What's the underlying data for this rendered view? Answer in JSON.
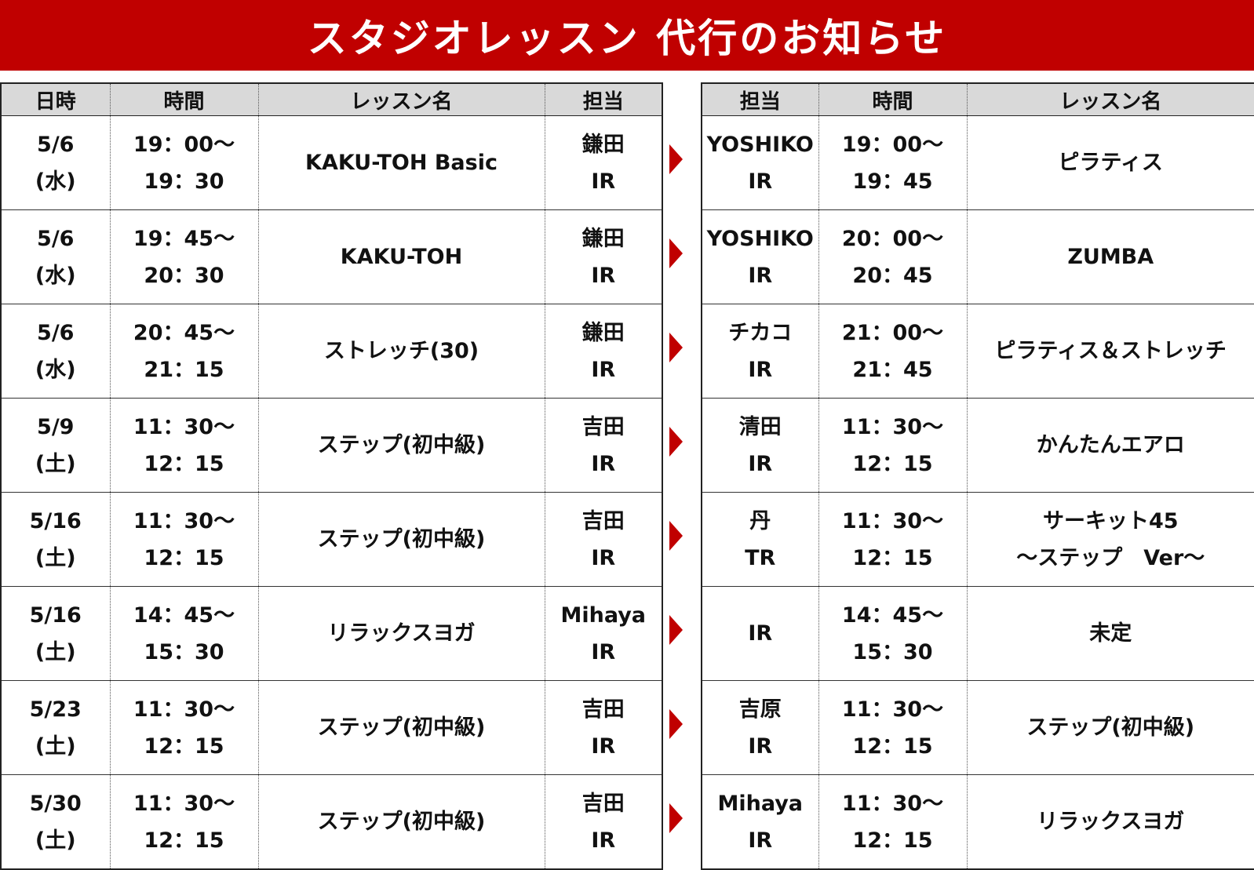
{
  "theme": {
    "banner_color": "#c00000",
    "header_bg": "#d9d9d9",
    "arrow_color": "#c00000"
  },
  "title": "スタジオレッスン 代行のお知らせ",
  "left_table": {
    "headers": [
      "日時",
      "時間",
      "レッスン名",
      "担当"
    ],
    "rows": [
      {
        "date": "5/6",
        "day": "(水)",
        "time_start": "19：00～",
        "time_end": "19：30",
        "lesson": "KAKU-TOH Basic",
        "instructor": "鎌田",
        "club": "IR"
      },
      {
        "date": "5/6",
        "day": "(水)",
        "time_start": "19：45～",
        "time_end": "20：30",
        "lesson": "KAKU-TOH",
        "instructor": "鎌田",
        "club": "IR"
      },
      {
        "date": "5/6",
        "day": "(水)",
        "time_start": "20：45～",
        "time_end": "21：15",
        "lesson": "ストレッチ(30)",
        "instructor": "鎌田",
        "club": "IR"
      },
      {
        "date": "5/9",
        "day": "(土)",
        "time_start": "11：30～",
        "time_end": "12：15",
        "lesson": "ステップ(初中級)",
        "instructor": "吉田",
        "club": "IR"
      },
      {
        "date": "5/16",
        "day": "(土)",
        "time_start": "11：30～",
        "time_end": "12：15",
        "lesson": "ステップ(初中級)",
        "instructor": "吉田",
        "club": "IR"
      },
      {
        "date": "5/16",
        "day": "(土)",
        "time_start": "14：45～",
        "time_end": "15：30",
        "lesson": "リラックスヨガ",
        "instructor": "Mihaya",
        "club": "IR"
      },
      {
        "date": "5/23",
        "day": "(土)",
        "time_start": "11：30～",
        "time_end": "12：15",
        "lesson": "ステップ(初中級)",
        "instructor": "吉田",
        "club": "IR"
      },
      {
        "date": "5/30",
        "day": "(土)",
        "time_start": "11：30～",
        "time_end": "12：15",
        "lesson": "ステップ(初中級)",
        "instructor": "吉田",
        "club": "IR"
      }
    ]
  },
  "right_table": {
    "headers": [
      "担当",
      "時間",
      "レッスン名"
    ],
    "rows": [
      {
        "instructor": "YOSHIKO",
        "club": "IR",
        "time_start": "19：00～",
        "time_end": "19：45",
        "lesson_line1": "ピラティス",
        "lesson_line2": ""
      },
      {
        "instructor": "YOSHIKO",
        "club": "IR",
        "time_start": "20：00～",
        "time_end": "20：45",
        "lesson_line1": "ZUMBA",
        "lesson_line2": ""
      },
      {
        "instructor": "チカコ",
        "club": "IR",
        "time_start": "21：00～",
        "time_end": "21：45",
        "lesson_line1": "ピラティス＆ストレッチ",
        "lesson_line2": ""
      },
      {
        "instructor": "清田",
        "club": "IR",
        "time_start": "11：30～",
        "time_end": "12：15",
        "lesson_line1": "かんたんエアロ",
        "lesson_line2": ""
      },
      {
        "instructor": "丹",
        "club": "TR",
        "time_start": "11：30～",
        "time_end": "12：15",
        "lesson_line1": "サーキット45",
        "lesson_line2": "～ステップ　Ver～"
      },
      {
        "instructor": "",
        "club": "IR",
        "time_start": "14：45～",
        "time_end": "15：30",
        "lesson_line1": "未定",
        "lesson_line2": ""
      },
      {
        "instructor": "吉原",
        "club": "IR",
        "time_start": "11：30～",
        "time_end": "12：15",
        "lesson_line1": "ステップ(初中級)",
        "lesson_line2": ""
      },
      {
        "instructor": "Mihaya",
        "club": "IR",
        "time_start": "11：30～",
        "time_end": "12：15",
        "lesson_line1": "リラックスヨガ",
        "lesson_line2": ""
      }
    ]
  }
}
